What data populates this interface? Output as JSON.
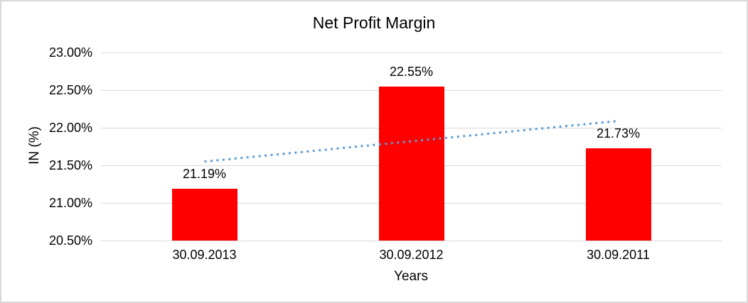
{
  "chart_data": {
    "type": "bar",
    "title": "Net Profit Margin",
    "xlabel": "Years",
    "ylabel": "IN (%)",
    "categories": [
      "30.09.2013",
      "30.09.2012",
      "30.09.2011"
    ],
    "values": [
      21.19,
      22.55,
      21.73
    ],
    "data_labels": [
      "21.19%",
      "22.55%",
      "21.73%"
    ],
    "ylim": [
      20.5,
      23.0
    ],
    "ytick_labels": [
      "20.50%",
      "21.00%",
      "21.50%",
      "22.00%",
      "22.50%",
      "23.00%"
    ],
    "grid": true,
    "legend": "none",
    "bar_color": "#FF0000",
    "gridline_color": "#D9D9D9",
    "frame_border_color": "#D9D9D9",
    "text_color": "#000000",
    "trendline": {
      "type": "linear",
      "style": "dotted",
      "color": "#5B9BD5",
      "start_value": 21.55,
      "end_value": 22.09
    }
  }
}
